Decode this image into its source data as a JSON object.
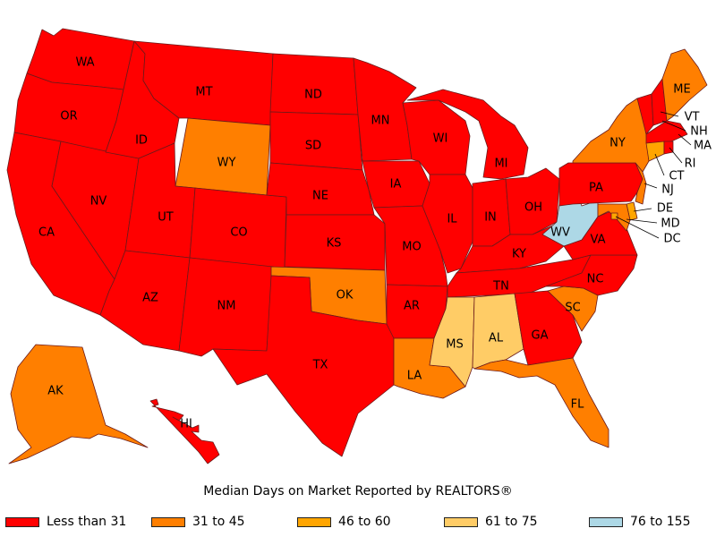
{
  "caption": "Median Days on Market Reported by REALTORS®",
  "colors": {
    "lt31": "#ff0000",
    "c31_45": "#ff7f00",
    "c46_60": "#ffa500",
    "c61_75": "#ffcc66",
    "c76_155": "#add8e6",
    "border": "#6b1a1a"
  },
  "legend": [
    {
      "label": "Less than 31",
      "color": "#ff0000"
    },
    {
      "label": "31 to 45",
      "color": "#ff7f00"
    },
    {
      "label": "46 to 60",
      "color": "#ffa500"
    },
    {
      "label": "61 to 75",
      "color": "#ffcc66"
    },
    {
      "label": "76 to 155",
      "color": "#add8e6"
    }
  ],
  "states": {
    "WA": "WA",
    "OR": "OR",
    "CA": "CA",
    "NV": "NV",
    "ID": "ID",
    "MT": "MT",
    "WY": "WY",
    "UT": "UT",
    "CO": "CO",
    "AZ": "AZ",
    "NM": "NM",
    "ND": "ND",
    "SD": "SD",
    "NE": "NE",
    "KS": "KS",
    "OK": "OK",
    "TX": "TX",
    "MN": "MN",
    "IA": "IA",
    "MO": "MO",
    "AR": "AR",
    "LA": "LA",
    "WI": "WI",
    "IL": "IL",
    "MI": "MI",
    "IN": "IN",
    "OH": "OH",
    "KY": "KY",
    "TN": "TN",
    "MS": "MS",
    "AL": "AL",
    "GA": "GA",
    "FL": "FL",
    "SC": "SC",
    "NC": "NC",
    "VA": "VA",
    "WV": "WV",
    "PA": "PA",
    "NY": "NY",
    "ME": "ME",
    "VT": "VT",
    "NH": "NH",
    "MA": "MA",
    "RI": "RI",
    "CT": "CT",
    "NJ": "NJ",
    "DE": "DE",
    "MD": "MD",
    "DC": "DC",
    "AK": "AK",
    "HI": "HI"
  },
  "categories": {
    "lt31": [
      "WA",
      "OR",
      "CA",
      "NV",
      "ID",
      "MT",
      "UT",
      "CO",
      "AZ",
      "NM",
      "ND",
      "SD",
      "NE",
      "KS",
      "TX",
      "MN",
      "IA",
      "MO",
      "AR",
      "WI",
      "IL",
      "MI",
      "IN",
      "OH",
      "KY",
      "TN",
      "GA",
      "NC",
      "VA",
      "PA",
      "VT",
      "NH",
      "MA",
      "RI",
      "HI"
    ],
    "c31_45": [
      "WY",
      "OK",
      "LA",
      "FL",
      "SC",
      "NY",
      "ME",
      "NJ",
      "MD",
      "AK"
    ],
    "c46_60": [
      "CT",
      "DE",
      "DC"
    ],
    "c61_75": [
      "MS",
      "AL"
    ],
    "c76_155": [
      "WV"
    ]
  }
}
